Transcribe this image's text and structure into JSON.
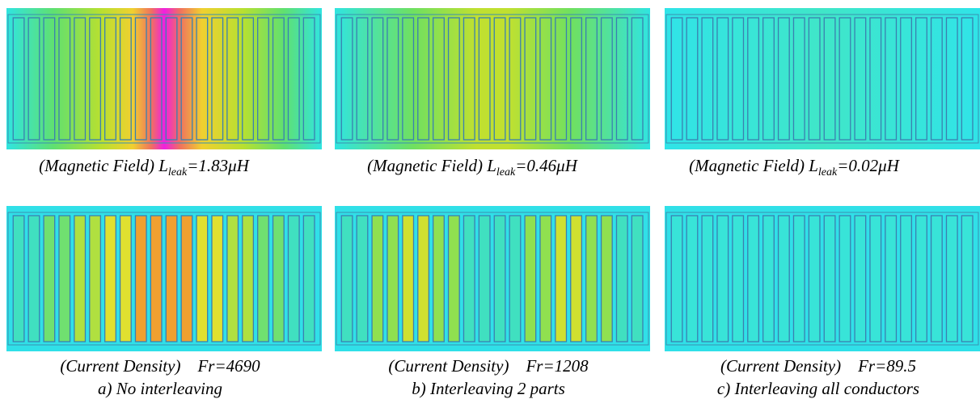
{
  "panels": [
    {
      "field_caption": {
        "prefix": "(Magnetic Field) L",
        "subscript": "leak",
        "suffix": "=1.83μH"
      },
      "current_caption": "(Current Density)    Fr=4690",
      "label": "a) No interleaving"
    },
    {
      "field_caption": {
        "prefix": "(Magnetic Field) L",
        "subscript": "leak",
        "suffix": "=0.46μH"
      },
      "current_caption": "(Current Density)    Fr=1208",
      "label": "b) Interleaving 2 parts"
    },
    {
      "field_caption": {
        "prefix": "(Magnetic Field) L",
        "subscript": "leak",
        "suffix": "=0.02μH"
      },
      "current_caption": "(Current Density)    Fr=89.5",
      "label": "c) Interleaving all conductors"
    }
  ]
}
